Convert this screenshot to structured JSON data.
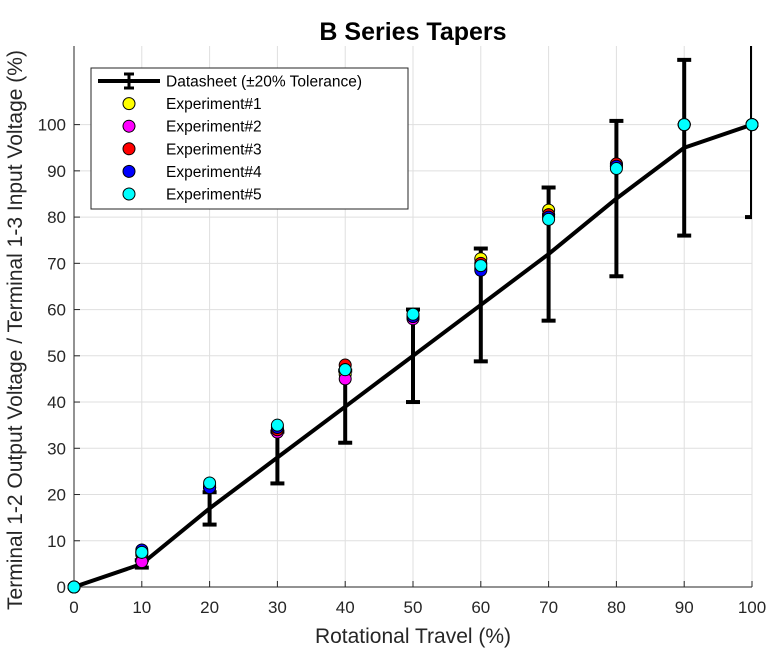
{
  "chart_data": {
    "type": "line",
    "title": "B Series Tapers",
    "xlabel": "Rotational Travel (%)",
    "ylabel": "Terminal 1-2 Output Voltage / Terminal 1-3 Input Voltage (%)",
    "xlim": [
      0,
      100
    ],
    "ylim": [
      0,
      117
    ],
    "xticks": [
      0,
      10,
      20,
      30,
      40,
      50,
      60,
      70,
      80,
      90,
      100
    ],
    "yticks": [
      0,
      10,
      20,
      30,
      40,
      50,
      60,
      70,
      80,
      90,
      100
    ],
    "grid": true,
    "legend_position": "top-left",
    "x": [
      0,
      10,
      20,
      30,
      40,
      50,
      60,
      70,
      80,
      90,
      100
    ],
    "series": [
      {
        "name": "Datasheet (±20% Tolerance)",
        "style": "line-errorbar",
        "color": "#000000",
        "values": [
          0,
          5,
          17,
          28,
          39,
          50,
          61,
          72,
          84,
          95,
          100
        ],
        "error": [
          0,
          0.8,
          3.5,
          5.6,
          7.8,
          10,
          12.2,
          14.4,
          16.8,
          19,
          20
        ]
      },
      {
        "name": "Experiment#1",
        "style": "marker",
        "color": "#ffff00",
        "values": [
          0,
          7,
          22,
          34,
          46,
          58.5,
          71,
          81.5,
          91.5,
          100,
          100
        ]
      },
      {
        "name": "Experiment#2",
        "style": "marker",
        "color": "#ff00ff",
        "values": [
          0,
          5.5,
          21.5,
          33.5,
          45,
          58,
          69,
          80.5,
          91,
          100,
          100
        ]
      },
      {
        "name": "Experiment#3",
        "style": "marker",
        "color": "#ff0000",
        "values": [
          0,
          7.5,
          21.5,
          34,
          48,
          58.5,
          70,
          80.5,
          91.5,
          100,
          100
        ]
      },
      {
        "name": "Experiment#4",
        "style": "marker",
        "color": "#0000ff",
        "values": [
          0,
          8,
          21.5,
          34.5,
          47,
          58.5,
          68.5,
          80,
          91,
          100,
          100
        ]
      },
      {
        "name": "Experiment#5",
        "style": "marker",
        "color": "#00ffff",
        "values": [
          0,
          7.5,
          22.5,
          35,
          47,
          59,
          69.5,
          79.5,
          90.5,
          100,
          100
        ]
      }
    ]
  }
}
